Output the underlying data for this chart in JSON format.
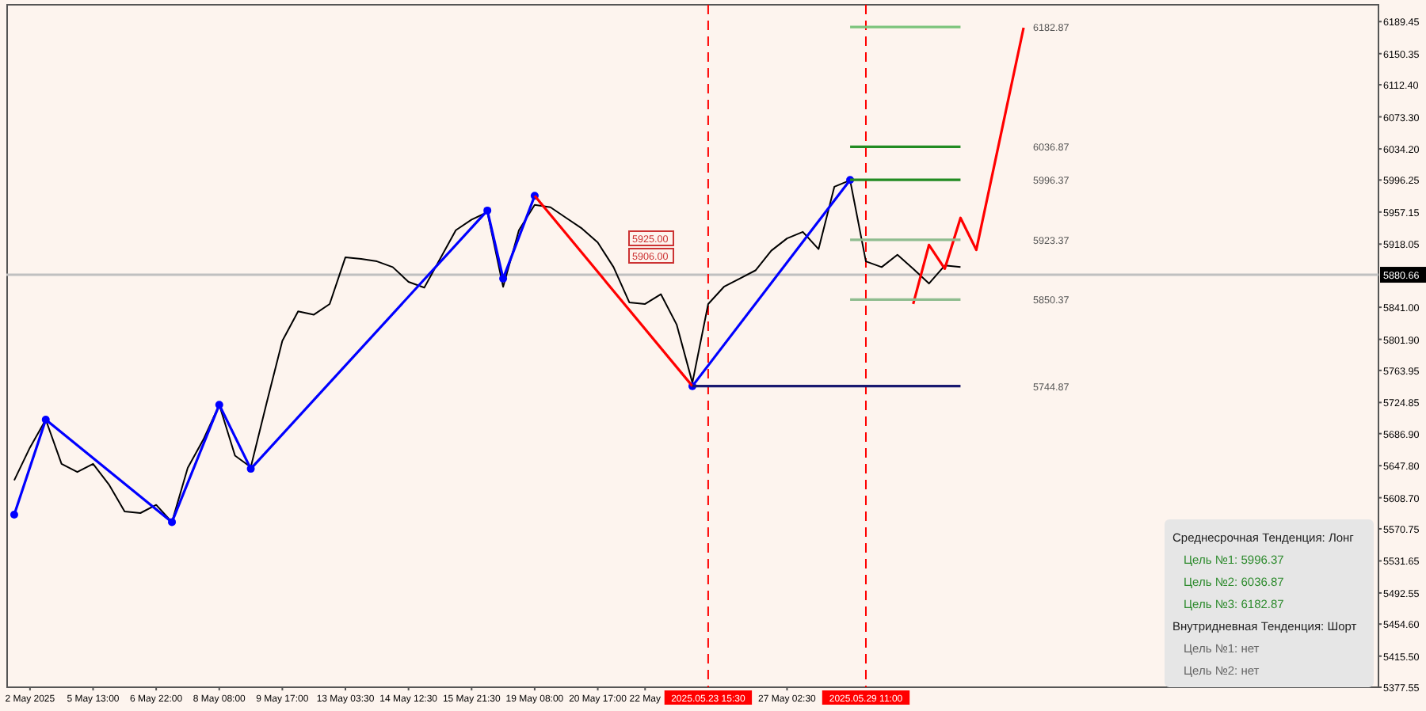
{
  "chart_data": {
    "type": "line",
    "ylim": [
      5377.55,
      6210
    ],
    "categories": [
      null,
      "2 May 2025",
      null,
      null,
      null,
      "5 May 13:00",
      null,
      null,
      null,
      "6 May 22:00",
      null,
      null,
      null,
      "8 May 08:00",
      null,
      null,
      null,
      "9 May 17:00",
      null,
      null,
      null,
      "13 May 03:30",
      null,
      null,
      null,
      "14 May 12:30",
      null,
      null,
      null,
      "15 May 21:30",
      null,
      null,
      null,
      "19 May 08:00",
      null,
      null,
      null,
      "20 May 17:00",
      null,
      null,
      "22 May",
      null,
      null,
      null,
      "2025.05.23 15:30",
      null,
      null,
      null,
      null,
      "27 May 02:30",
      null,
      null,
      null,
      null,
      "2025.05.29 11:00",
      null,
      null,
      null,
      null,
      null,
      null,
      null,
      null,
      null,
      null,
      null,
      null,
      null,
      null,
      null,
      null,
      null,
      null,
      null,
      null,
      null,
      null,
      null,
      null,
      null,
      null,
      null,
      null,
      null,
      null,
      null,
      null
    ],
    "yticks": [
      {
        "value": 6189.45,
        "label": "6189.45"
      },
      {
        "value": 6150.35,
        "label": "6150.35"
      },
      {
        "value": 6112.4,
        "label": "6112.40"
      },
      {
        "value": 6073.3,
        "label": "6073.30"
      },
      {
        "value": 6034.2,
        "label": "6034.20"
      },
      {
        "value": 5996.25,
        "label": "5996.25"
      },
      {
        "value": 5957.15,
        "label": "5957.15"
      },
      {
        "value": 5918.05,
        "label": "5918.05"
      },
      {
        "value": 5841,
        "label": "5841.00"
      },
      {
        "value": 5801.9,
        "label": "5801.90"
      },
      {
        "value": 5763.95,
        "label": "5763.95"
      },
      {
        "value": 5724.85,
        "label": "5724.85"
      },
      {
        "value": 5686.9,
        "label": "5686.90"
      },
      {
        "value": 5647.8,
        "label": "5647.80"
      },
      {
        "value": 5608.7,
        "label": "5608.70"
      },
      {
        "value": 5570.75,
        "label": "5570.75"
      },
      {
        "value": 5531.65,
        "label": "5531.65"
      },
      {
        "value": 5492.55,
        "label": "5492.55"
      },
      {
        "value": 5454.6,
        "label": "5454.60"
      },
      {
        "value": 5415.5,
        "label": "5415.50"
      },
      {
        "value": 5377.55,
        "label": "5377.55"
      }
    ],
    "series": [
      {
        "color": "#000000",
        "values": [
          5630,
          5670,
          5704,
          5650,
          5640,
          5650,
          5625,
          5592,
          5590,
          5600,
          5579,
          5645,
          5680,
          5722,
          5660,
          5646,
          5724,
          5800,
          5836,
          5832,
          5845,
          5902,
          5900,
          5897,
          5890,
          5872,
          5865,
          5900,
          5935,
          5948,
          5957,
          5866,
          5935,
          5966,
          5963,
          5950,
          5937,
          5920,
          5890,
          5847,
          5845,
          5857,
          5820,
          5749,
          5845,
          5866,
          5876,
          5886,
          5910,
          5925,
          5933,
          5912,
          5988,
          5996,
          5897,
          5890,
          5905,
          5888,
          5870,
          5892,
          5890,
          null,
          null,
          null,
          null,
          null,
          null,
          null,
          null,
          null,
          null,
          null,
          null,
          null,
          null,
          null,
          null,
          null,
          null,
          null,
          null,
          null,
          null,
          null,
          null,
          null,
          null
        ]
      },
      {
        "color": "#0000ff",
        "marker": "circle",
        "values": [
          5588,
          null,
          5704,
          null,
          null,
          null,
          null,
          null,
          null,
          null,
          5579,
          null,
          null,
          5722,
          null,
          5644,
          null,
          null,
          null,
          null,
          null,
          null,
          null,
          null,
          null,
          null,
          null,
          null,
          null,
          null,
          5959,
          5876,
          null,
          5977,
          null,
          null,
          null,
          null,
          null,
          null,
          null,
          null,
          null,
          null,
          null,
          null,
          null,
          null,
          null,
          null,
          null,
          null,
          null,
          null,
          null,
          null,
          null,
          null,
          null,
          null,
          null,
          null,
          null,
          null,
          null,
          null,
          null,
          null,
          null,
          null,
          null,
          null,
          null,
          null,
          null,
          null,
          null,
          null,
          null,
          null,
          null,
          null,
          null,
          null,
          null,
          null,
          null
        ]
      },
      {
        "color": "#0000ff",
        "marker": "circle",
        "values": [
          null,
          null,
          null,
          null,
          null,
          null,
          null,
          null,
          null,
          null,
          null,
          null,
          null,
          null,
          null,
          null,
          null,
          null,
          null,
          null,
          null,
          null,
          null,
          null,
          null,
          null,
          null,
          null,
          null,
          null,
          null,
          null,
          null,
          null,
          null,
          null,
          null,
          null,
          null,
          null,
          null,
          null,
          null,
          5744.87,
          null,
          null,
          null,
          null,
          null,
          null,
          null,
          null,
          null,
          5996.37,
          null,
          null,
          null,
          null,
          null,
          null,
          null,
          null,
          null,
          null,
          null,
          null,
          null,
          null,
          null,
          null,
          null,
          null,
          null,
          null,
          null,
          null,
          null,
          null,
          null,
          null,
          null,
          null,
          null,
          null,
          null,
          null,
          null
        ]
      },
      {
        "color": "#ff0000",
        "values": [
          null,
          null,
          null,
          null,
          null,
          null,
          null,
          null,
          null,
          null,
          null,
          null,
          null,
          null,
          null,
          null,
          null,
          null,
          null,
          null,
          null,
          null,
          null,
          null,
          null,
          null,
          null,
          null,
          null,
          null,
          null,
          null,
          null,
          5977,
          null,
          null,
          null,
          null,
          null,
          null,
          null,
          null,
          null,
          5744.87,
          null,
          null,
          null,
          null,
          null,
          null,
          null,
          null,
          null,
          null,
          null,
          null,
          null,
          null,
          null,
          null,
          null,
          null,
          null,
          null,
          null,
          null,
          null,
          null,
          null,
          null,
          null,
          null,
          null,
          null,
          null,
          null,
          null,
          null,
          null,
          null,
          null,
          null,
          null,
          null,
          null,
          null,
          null
        ]
      },
      {
        "color": "#ff0000",
        "values": [
          null,
          null,
          null,
          null,
          null,
          null,
          null,
          null,
          null,
          null,
          null,
          null,
          null,
          null,
          null,
          null,
          null,
          null,
          null,
          null,
          null,
          null,
          null,
          null,
          null,
          null,
          null,
          null,
          null,
          null,
          null,
          null,
          null,
          null,
          null,
          null,
          null,
          null,
          null,
          null,
          null,
          null,
          null,
          null,
          null,
          null,
          null,
          null,
          null,
          null,
          null,
          null,
          null,
          null,
          null,
          null,
          null,
          5845,
          5917,
          5888,
          5950,
          5911,
          null,
          null,
          6182,
          null,
          null,
          null,
          null,
          null,
          null,
          null,
          null,
          null,
          null,
          null,
          null,
          null,
          null,
          null,
          null,
          null,
          null,
          null,
          null,
          null,
          null
        ]
      },
      {
        "color": "#7cc47c",
        "values": [
          null,
          null,
          null,
          null,
          null,
          null,
          null,
          null,
          null,
          null,
          null,
          null,
          null,
          null,
          null,
          null,
          null,
          null,
          null,
          null,
          null,
          null,
          null,
          null,
          null,
          null,
          null,
          null,
          null,
          null,
          null,
          null,
          null,
          null,
          null,
          null,
          null,
          null,
          null,
          null,
          null,
          null,
          null,
          null,
          null,
          null,
          null,
          null,
          null,
          null,
          null,
          null,
          null,
          6182.87,
          6182.87,
          6182.87,
          6182.87,
          6182.87,
          6182.87,
          6182.87,
          6182.87,
          null,
          null,
          null,
          null,
          null,
          null,
          null,
          null,
          null,
          null,
          null,
          null,
          null,
          null,
          null,
          null,
          null,
          null,
          null,
          null,
          null,
          null,
          null,
          null,
          null,
          null
        ]
      },
      {
        "color": "#228b22",
        "values": [
          null,
          null,
          null,
          null,
          null,
          null,
          null,
          null,
          null,
          null,
          null,
          null,
          null,
          null,
          null,
          null,
          null,
          null,
          null,
          null,
          null,
          null,
          null,
          null,
          null,
          null,
          null,
          null,
          null,
          null,
          null,
          null,
          null,
          null,
          null,
          null,
          null,
          null,
          null,
          null,
          null,
          null,
          null,
          null,
          null,
          null,
          null,
          null,
          null,
          null,
          null,
          null,
          null,
          6036.87,
          6036.87,
          6036.87,
          6036.87,
          6036.87,
          6036.87,
          6036.87,
          6036.87,
          null,
          null,
          null,
          null,
          null,
          null,
          null,
          null,
          null,
          null,
          null,
          null,
          null,
          null,
          null,
          null,
          null,
          null,
          null,
          null,
          null,
          null,
          null,
          null,
          null,
          null
        ]
      },
      {
        "color": "#228b22",
        "values": [
          null,
          null,
          null,
          null,
          null,
          null,
          null,
          null,
          null,
          null,
          null,
          null,
          null,
          null,
          null,
          null,
          null,
          null,
          null,
          null,
          null,
          null,
          null,
          null,
          null,
          null,
          null,
          null,
          null,
          null,
          null,
          null,
          null,
          null,
          null,
          null,
          null,
          null,
          null,
          null,
          null,
          null,
          null,
          null,
          null,
          null,
          null,
          null,
          null,
          null,
          null,
          null,
          null,
          5996.37,
          5996.37,
          5996.37,
          5996.37,
          5996.37,
          5996.37,
          5996.37,
          5996.37,
          null,
          null,
          null,
          null,
          null,
          null,
          null,
          null,
          null,
          null,
          null,
          null,
          null,
          null,
          null,
          null,
          null,
          null,
          null,
          null,
          null,
          null,
          null,
          null,
          null,
          null
        ]
      },
      {
        "color": "#8fbc8f",
        "values": [
          null,
          null,
          null,
          null,
          null,
          null,
          null,
          null,
          null,
          null,
          null,
          null,
          null,
          null,
          null,
          null,
          null,
          null,
          null,
          null,
          null,
          null,
          null,
          null,
          null,
          null,
          null,
          null,
          null,
          null,
          null,
          null,
          null,
          null,
          null,
          null,
          null,
          null,
          null,
          null,
          null,
          null,
          null,
          null,
          null,
          null,
          null,
          null,
          null,
          null,
          null,
          null,
          null,
          5923.37,
          5923.37,
          5923.37,
          5923.37,
          5923.37,
          5923.37,
          5923.37,
          5923.37,
          null,
          null,
          null,
          null,
          null,
          null,
          null,
          null,
          null,
          null,
          null,
          null,
          null,
          null,
          null,
          null,
          null,
          null,
          null,
          null,
          null,
          null,
          null,
          null,
          null,
          null
        ]
      },
      {
        "color": "#8fbc8f",
        "values": [
          null,
          null,
          null,
          null,
          null,
          null,
          null,
          null,
          null,
          null,
          null,
          null,
          null,
          null,
          null,
          null,
          null,
          null,
          null,
          null,
          null,
          null,
          null,
          null,
          null,
          null,
          null,
          null,
          null,
          null,
          null,
          null,
          null,
          null,
          null,
          null,
          null,
          null,
          null,
          null,
          null,
          null,
          null,
          null,
          null,
          null,
          null,
          null,
          null,
          null,
          null,
          null,
          null,
          5850.37,
          5850.37,
          5850.37,
          5850.37,
          5850.37,
          5850.37,
          5850.37,
          5850.37,
          null,
          null,
          null,
          null,
          null,
          null,
          null,
          null,
          null,
          null,
          null,
          null,
          null,
          null,
          null,
          null,
          null,
          null,
          null,
          null,
          null,
          null,
          null,
          null,
          null,
          null
        ]
      },
      {
        "color": "#191970",
        "values": [
          null,
          null,
          null,
          null,
          null,
          null,
          null,
          null,
          null,
          null,
          null,
          null,
          null,
          null,
          null,
          null,
          null,
          null,
          null,
          null,
          null,
          null,
          null,
          null,
          null,
          null,
          null,
          null,
          null,
          null,
          null,
          null,
          null,
          null,
          null,
          null,
          null,
          null,
          null,
          null,
          null,
          null,
          null,
          5744.87,
          5744.87,
          5744.87,
          5744.87,
          5744.87,
          5744.87,
          5744.87,
          5744.87,
          5744.87,
          5744.87,
          5744.87,
          5744.87,
          5744.87,
          5744.87,
          5744.87,
          5744.87,
          5744.87,
          5744.87,
          null,
          null,
          null,
          null,
          null,
          null,
          null,
          null,
          null,
          null,
          null,
          null,
          null,
          null,
          null,
          null,
          null,
          null,
          null,
          null,
          null,
          null,
          null,
          null,
          null,
          null
        ]
      }
    ],
    "ref_lines": [
      {
        "axis": "y",
        "value": 5880.66,
        "label": "5880.66",
        "color": "#c0c0c0"
      },
      {
        "axis": "x",
        "value": "2025.05.23 15:30",
        "color": "#ff0000",
        "line_style": "dashed"
      },
      {
        "axis": "x",
        "value": "2025.05.29 11:00",
        "color": "#ff0000",
        "line_style": "dashed"
      }
    ],
    "annotations": [
      {
        "text": "6182.87",
        "y": 6182.87
      },
      {
        "text": "6036.87",
        "y": 6036.87
      },
      {
        "text": "5996.37",
        "y": 5996.37
      },
      {
        "text": "5923.37",
        "y": 5923.37
      },
      {
        "text": "5850.37",
        "y": 5850.37
      },
      {
        "text": "5744.87",
        "y": 5744.87
      },
      "5925.00",
      "5906.00",
      "Среднесрочная Тенденция: Лонг",
      "Цель №1: 5996.37",
      "Цель №2: 6036.87",
      "Цель №3: 6182.87",
      "Внутридневная Тенденция: Шорт",
      "Цель №1: нет",
      "Цель №2: нет"
    ]
  }
}
